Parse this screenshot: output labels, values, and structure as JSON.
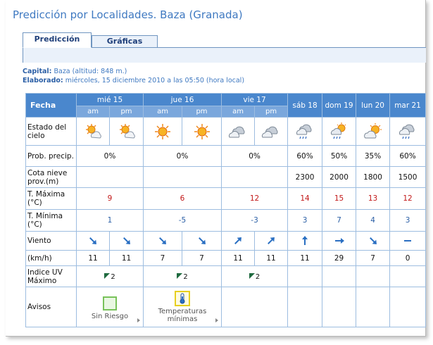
{
  "page": {
    "title": "Predicción por Localidades. Baza (Granada)"
  },
  "tabs": [
    {
      "label": "Predicción",
      "active": true
    },
    {
      "label": "Gráficas",
      "active": false
    }
  ],
  "meta": {
    "capital_label": "Capital:",
    "capital_value": "Baza (altitud: 848 m.)",
    "elaborado_label": "Elaborado:",
    "elaborado_value": "miércoles, 15 diciembre 2010 a las 05:50 (hora local)"
  },
  "table": {
    "fecha_label": "Fecha",
    "days": [
      "mié 15",
      "jue 16",
      "vie 17",
      "sáb 18",
      "dom 19",
      "lun 20",
      "mar 21"
    ],
    "am_label": "am",
    "pm_label": "pm",
    "row_labels": {
      "estado": "Estado del cielo",
      "prob": "Prob. precip.",
      "cota": "Cota nieve prov.(m)",
      "tmax": "T. Máxima (°C)",
      "tmin": "T. Mínima (°C)",
      "viento": "Viento",
      "kmh": "(km/h)",
      "uv": "Indice UV Máximo",
      "avisos": "Avisos"
    },
    "sky_icons": [
      "sun-cloud-icon",
      "sun-cloud-icon",
      "sun-icon",
      "sun-icon",
      "cloud-icon",
      "cloud-icon",
      "cloud-rain-icon",
      "sun-cloud-rain-icon",
      "sun-cloud-icon",
      "cloud-rain-icon"
    ],
    "prob_precip": [
      "0%",
      "0%",
      "0%",
      "60%",
      "50%",
      "35%",
      "60%"
    ],
    "cota_nieve": [
      "",
      "",
      "",
      "2300",
      "2000",
      "1800",
      "1500"
    ],
    "t_max": [
      "9",
      "6",
      "12",
      "14",
      "15",
      "13",
      "12"
    ],
    "t_min": [
      "1",
      "-5",
      "-3",
      "3",
      "7",
      "4",
      "3"
    ],
    "wind_directions": [
      "NO",
      "NO",
      "NO",
      "NO",
      "SO",
      "SO",
      "S",
      "O",
      "NO",
      "calma"
    ],
    "wind_speed": [
      "11",
      "11",
      "7",
      "7",
      "11",
      "11",
      "11",
      "29",
      "7",
      "0"
    ],
    "uv_index": [
      "2",
      "2",
      "2"
    ],
    "avisos": [
      {
        "label": "Sin Riesgo",
        "icon": "green-square-icon"
      },
      {
        "label": "Temperaturas mínimas",
        "icon": "thermometer-warning-icon"
      }
    ]
  },
  "colors": {
    "header_blue": "#4a87cd",
    "subheader_blue": "#7aa7dc",
    "tmax_red": "#c21818",
    "tmin_blue": "#2b5fa6",
    "arrow_blue": "#2a6fc2"
  }
}
